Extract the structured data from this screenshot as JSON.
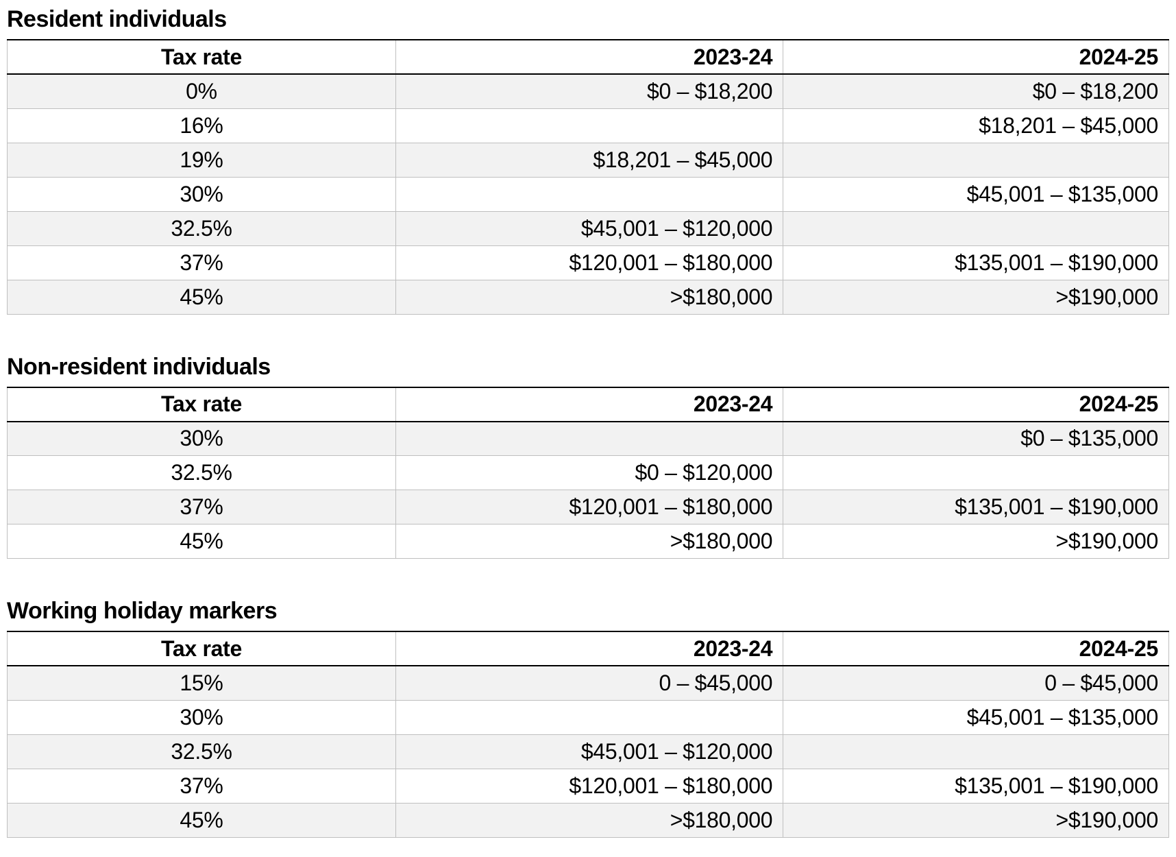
{
  "style": {
    "band_color": "#f2f2f2",
    "grid_color": "#bfbfbf",
    "rule_color": "#000000"
  },
  "sections": [
    {
      "title": "Resident individuals",
      "columns": [
        "Tax rate",
        "2023-24",
        "2024-25"
      ],
      "rows": [
        {
          "rate": "0%",
          "y2324": "$0 – $18,200",
          "y2425": "$0 – $18,200"
        },
        {
          "rate": "16%",
          "y2324": "",
          "y2425": "$18,201 – $45,000"
        },
        {
          "rate": "19%",
          "y2324": "$18,201 – $45,000",
          "y2425": ""
        },
        {
          "rate": "30%",
          "y2324": "",
          "y2425": "$45,001 – $135,000"
        },
        {
          "rate": "32.5%",
          "y2324": "$45,001 – $120,000",
          "y2425": ""
        },
        {
          "rate": "37%",
          "y2324": "$120,001 – $180,000",
          "y2425": "$135,001 – $190,000"
        },
        {
          "rate": "45%",
          "y2324": ">$180,000",
          "y2425": ">$190,000"
        }
      ]
    },
    {
      "title": "Non-resident individuals",
      "columns": [
        "Tax rate",
        "2023-24",
        "2024-25"
      ],
      "rows": [
        {
          "rate": "30%",
          "y2324": "",
          "y2425": "$0 – $135,000"
        },
        {
          "rate": "32.5%",
          "y2324": "$0 – $120,000",
          "y2425": ""
        },
        {
          "rate": "37%",
          "y2324": "$120,001 – $180,000",
          "y2425": "$135,001 – $190,000"
        },
        {
          "rate": "45%",
          "y2324": ">$180,000",
          "y2425": ">$190,000"
        }
      ]
    },
    {
      "title": "Working holiday markers",
      "columns": [
        "Tax rate",
        "2023-24",
        "2024-25"
      ],
      "rows": [
        {
          "rate": "15%",
          "y2324": "0 – $45,000",
          "y2425": "0 – $45,000"
        },
        {
          "rate": "30%",
          "y2324": "",
          "y2425": "$45,001 – $135,000"
        },
        {
          "rate": "32.5%",
          "y2324": "$45,001 – $120,000",
          "y2425": ""
        },
        {
          "rate": "37%",
          "y2324": "$120,001 – $180,000",
          "y2425": "$135,001 – $190,000"
        },
        {
          "rate": "45%",
          "y2324": ">$180,000",
          "y2425": ">$190,000"
        }
      ]
    }
  ]
}
